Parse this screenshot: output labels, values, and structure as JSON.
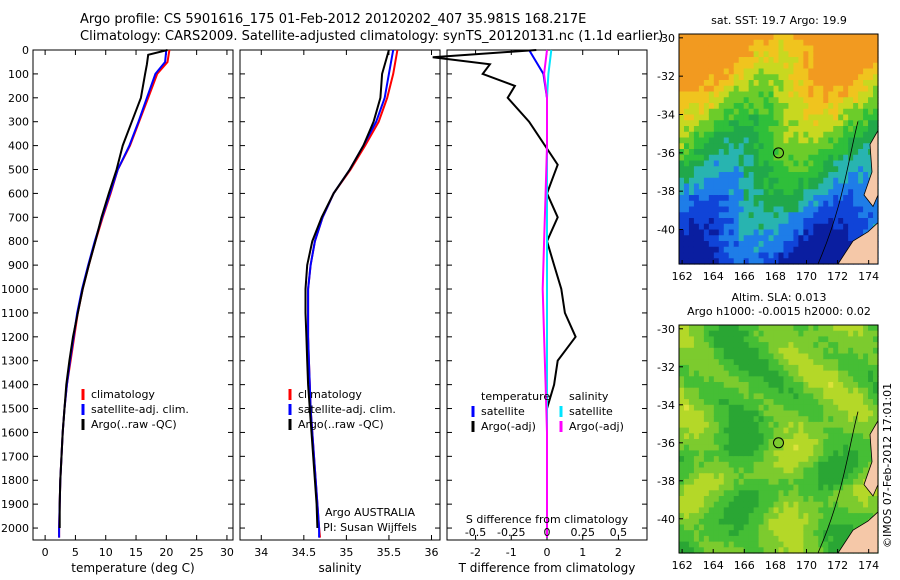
{
  "header": {
    "line1": "Argo profile: CS 5901616_175 01-Feb-2012 20120202_407 35.981S 168.217E",
    "line2": "Climatology: CARS2009. Satellite-adjusted climatology: synTS_20120131.nc (1.1d earlier)"
  },
  "colors": {
    "climatology": "#ff0000",
    "satellite": "#0000ff",
    "argo": "#000000",
    "sat_cyan": "#00e5ff",
    "argo_magenta": "#ff00ff",
    "land": "#f5c8a8"
  },
  "chart_data": [
    {
      "type": "line",
      "panel": "temperature",
      "xlabel": "temperature (deg C)",
      "ylabel": "",
      "xlim": [
        -2,
        31
      ],
      "ylim": [
        2050,
        0
      ],
      "xticks": [
        0,
        5,
        10,
        15,
        20,
        25,
        30
      ],
      "yticks": [
        0,
        100,
        200,
        300,
        400,
        500,
        600,
        700,
        800,
        900,
        1000,
        1100,
        1200,
        1300,
        1400,
        1500,
        1600,
        1700,
        1800,
        1900,
        2000
      ],
      "grid": false,
      "legend": [
        "climatology",
        "satellite-adj. clim.",
        "Argo(..raw -QC)"
      ],
      "series": [
        {
          "name": "climatology",
          "color": "#ff0000",
          "x": [
            20.5,
            20.2,
            18.5,
            17.0,
            15.5,
            14.0,
            12.0,
            10.8,
            9.5,
            8.3,
            7.2,
            6.2,
            5.4,
            4.8,
            4.2,
            3.6,
            3.2,
            2.9,
            2.7,
            2.5,
            2.4,
            2.3,
            2.3
          ],
          "y": [
            0,
            50,
            100,
            200,
            300,
            400,
            500,
            600,
            700,
            800,
            900,
            1000,
            1100,
            1200,
            1300,
            1400,
            1500,
            1600,
            1700,
            1800,
            1900,
            2000,
            2040
          ]
        },
        {
          "name": "satellite-adj. clim.",
          "color": "#0000ff",
          "x": [
            20.0,
            19.8,
            18.2,
            16.8,
            15.4,
            13.9,
            12.0,
            10.7,
            9.4,
            8.2,
            7.1,
            6.1,
            5.3,
            4.7,
            4.1,
            3.6,
            3.2,
            2.9,
            2.7,
            2.5,
            2.4,
            2.3,
            2.3
          ],
          "y": [
            0,
            50,
            100,
            200,
            300,
            400,
            500,
            600,
            700,
            800,
            900,
            1000,
            1100,
            1200,
            1300,
            1400,
            1500,
            1600,
            1700,
            1800,
            1900,
            2000,
            2040
          ]
        },
        {
          "name": "Argo(..raw -QC)",
          "color": "#000000",
          "x": [
            20.2,
            17.0,
            16.8,
            16.5,
            15.8,
            14.3,
            12.8,
            11.8,
            10.5,
            9.3,
            8.3,
            7.2,
            6.2,
            5.4,
            4.6,
            4.0,
            3.5,
            3.2,
            2.9,
            2.7,
            2.5,
            2.4,
            2.4
          ],
          "y": [
            0,
            20,
            60,
            100,
            200,
            300,
            400,
            500,
            600,
            700,
            800,
            900,
            1000,
            1100,
            1200,
            1300,
            1400,
            1500,
            1600,
            1700,
            1800,
            1900,
            2000
          ]
        }
      ]
    },
    {
      "type": "line",
      "panel": "salinity",
      "xlabel": "salinity",
      "xlim": [
        33.75,
        36.1
      ],
      "ylim": [
        2050,
        0
      ],
      "xticks": [
        34,
        34.5,
        35,
        35.5,
        36
      ],
      "grid": false,
      "legend": [
        "climatology",
        "satellite-adj. clim.",
        "Argo(..raw -QC)"
      ],
      "annotation": [
        "Argo AUSTRALIA",
        "PI: Susan Wijffels"
      ],
      "series": [
        {
          "name": "climatology",
          "color": "#ff0000",
          "x": [
            35.6,
            35.55,
            35.48,
            35.38,
            35.22,
            35.05,
            34.85,
            34.72,
            34.63,
            34.58,
            34.55,
            34.55,
            34.55,
            34.56,
            34.57,
            34.58,
            34.6,
            34.62,
            34.64,
            34.66,
            34.68,
            34.69
          ],
          "y": [
            0,
            100,
            200,
            300,
            400,
            500,
            600,
            700,
            800,
            900,
            1000,
            1100,
            1200,
            1300,
            1400,
            1500,
            1600,
            1700,
            1800,
            1900,
            2000,
            2040
          ]
        },
        {
          "name": "satellite-adj. clim.",
          "color": "#0000ff",
          "x": [
            35.55,
            35.5,
            35.45,
            35.35,
            35.2,
            35.04,
            34.85,
            34.72,
            34.63,
            34.58,
            34.55,
            34.55,
            34.55,
            34.56,
            34.57,
            34.58,
            34.6,
            34.62,
            34.64,
            34.66,
            34.68,
            34.68
          ],
          "y": [
            0,
            100,
            200,
            300,
            400,
            500,
            600,
            700,
            800,
            900,
            1000,
            1100,
            1200,
            1300,
            1400,
            1500,
            1600,
            1700,
            1800,
            1900,
            2000,
            2040
          ]
        },
        {
          "name": "Argo(..raw -QC)",
          "color": "#000000",
          "x": [
            35.5,
            35.42,
            35.4,
            35.32,
            35.2,
            35.04,
            34.85,
            34.71,
            34.6,
            34.54,
            34.52,
            34.52,
            34.53,
            34.54,
            34.55,
            34.57,
            34.59,
            34.61,
            34.63,
            34.65,
            34.66
          ],
          "y": [
            0,
            100,
            200,
            300,
            400,
            500,
            600,
            700,
            800,
            900,
            1000,
            1100,
            1200,
            1300,
            1400,
            1500,
            1600,
            1700,
            1800,
            1900,
            2000
          ]
        }
      ]
    },
    {
      "type": "line",
      "panel": "difference",
      "xlabel": "T difference from climatology",
      "xlabel_top": "S difference from climatology",
      "xlim": [
        -2.8,
        2.8
      ],
      "ylim": [
        2050,
        0
      ],
      "xticks": [
        -2,
        -1,
        0,
        1,
        2
      ],
      "xtick_labels_bottom": [
        "-2",
        "-1",
        "0",
        "1",
        "2"
      ],
      "xticks_s": [
        -0.5,
        -0.25,
        0,
        0.25,
        0.5
      ],
      "xtick_labels_s": [
        "-0.5",
        "-0.25",
        "0",
        "0.25",
        "0.5"
      ],
      "legend_headers": [
        "temperature",
        "salinity"
      ],
      "legend": [
        "satellite",
        "Argo(-adj)",
        "satellite",
        "Argo(-adj)"
      ],
      "series": [
        {
          "name": "satellite",
          "quantity": "temperature",
          "color": "#0000ff",
          "x": [
            -0.5,
            -0.3,
            -0.1,
            0.0,
            0.0,
            0.0,
            0.0,
            0.0,
            0.0,
            0.0,
            0.0,
            0.0
          ],
          "y": [
            0,
            50,
            100,
            200,
            300,
            400,
            600,
            800,
            1000,
            1400,
            1800,
            2040
          ]
        },
        {
          "name": "Argo(-adj)",
          "quantity": "temperature",
          "color": "#000000",
          "x": [
            -0.3,
            -3.2,
            -1.6,
            -1.8,
            -0.9,
            -1.1,
            -0.5,
            0.3,
            0.2,
            0.0,
            0.3,
            0.0,
            0.2,
            0.4,
            0.5,
            0.8,
            0.3,
            0.2,
            0.0,
            0.0,
            0.0
          ],
          "y": [
            0,
            30,
            60,
            100,
            150,
            200,
            300,
            480,
            520,
            600,
            700,
            800,
            900,
            1000,
            1100,
            1200,
            1300,
            1400,
            1500,
            1800,
            2040
          ]
        },
        {
          "name": "satellite",
          "quantity": "salinity",
          "color": "#00e5ff",
          "x": [
            0.03,
            0.01,
            0.0,
            0.0,
            0.0,
            0.0,
            0.0,
            0.0,
            0.0
          ],
          "y": [
            0,
            100,
            200,
            400,
            800,
            1200,
            1600,
            2000,
            2040
          ]
        },
        {
          "name": "Argo(-adj)",
          "quantity": "salinity",
          "color": "#ff00ff",
          "x": [
            0.0,
            -0.02,
            0.0,
            0.0,
            -0.01,
            -0.02,
            -0.03,
            -0.02,
            -0.01,
            0.0,
            0.0
          ],
          "y": [
            0,
            100,
            200,
            400,
            600,
            800,
            1000,
            1200,
            1400,
            1600,
            2040
          ]
        }
      ]
    }
  ],
  "maps": [
    {
      "title": "sat. SST: 19.7 Argo: 19.9",
      "xticks": [
        162,
        164,
        166,
        168,
        170,
        172,
        174
      ],
      "yticks": [
        -30,
        -32,
        -34,
        -36,
        -38,
        -40
      ],
      "xlim": [
        161.8,
        174.6
      ],
      "ylim": [
        -41.8,
        -29.8
      ],
      "marker": [
        168.2,
        -36.0
      ]
    },
    {
      "title_lines": [
        "Altim. SLA: 0.013",
        "Argo h1000: -0.0015 h2000: 0.02"
      ],
      "xticks": [
        162,
        164,
        166,
        168,
        170,
        172,
        174
      ],
      "yticks": [
        -30,
        -32,
        -34,
        -36,
        -38,
        -40
      ],
      "xlim": [
        161.8,
        174.6
      ],
      "ylim": [
        -41.8,
        -29.8
      ],
      "marker": [
        168.2,
        -36.0
      ]
    }
  ],
  "credit": "©IMOS 07-Feb-2012 17:01:01"
}
